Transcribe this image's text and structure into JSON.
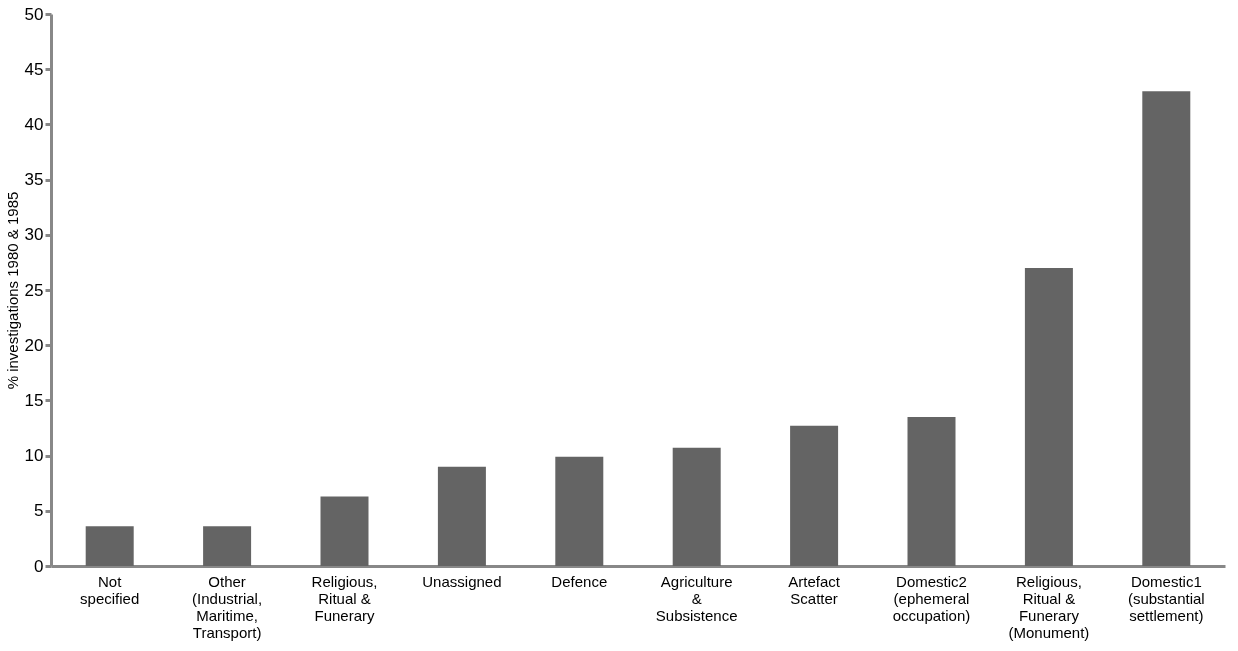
{
  "chart_data": {
    "type": "bar",
    "ylabel": "% investigations 1980 & 1985",
    "categories": [
      "Not specified",
      "Other (Industrial, Maritime, Transport)",
      "Religious, Ritual & Funerary",
      "Unassigned",
      "Defence",
      "Agriculture & Subsistence",
      "Artefact Scatter",
      "Domestic2 (ephemeral occupation)",
      "Religious, Ritual & Funerary (Monument)",
      "Domestic1 (substantial settlement)"
    ],
    "values": [
      3.6,
      3.6,
      6.3,
      9.0,
      9.9,
      10.7,
      12.7,
      13.5,
      27.0,
      43.0
    ],
    "color": "#646464",
    "ylim": [
      0,
      50
    ],
    "yticks": [
      0,
      5,
      10,
      15,
      20,
      25,
      30,
      35,
      40,
      45,
      50
    ],
    "grid": false
  }
}
